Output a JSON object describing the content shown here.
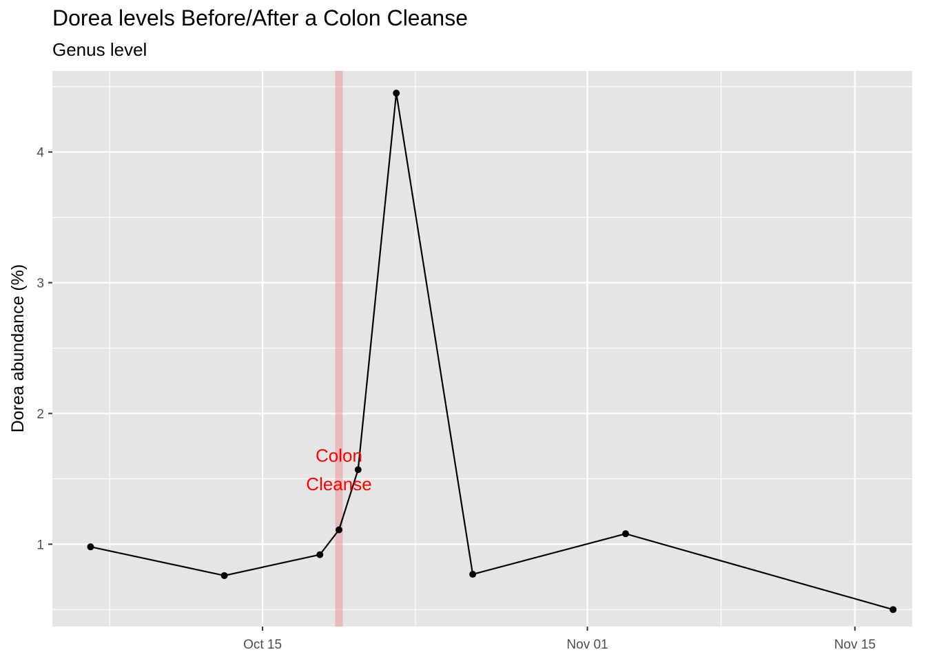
{
  "chart_data": {
    "type": "line",
    "title": "Dorea levels Before/After a Colon Cleanse",
    "subtitle": "Genus level",
    "xlabel": "",
    "ylabel": "Dorea abundance (%)",
    "x_type": "date",
    "xlim": [
      "2019-10-04",
      "2019-11-18"
    ],
    "ylim": [
      0.37,
      4.62
    ],
    "x_ticks": [
      {
        "date": "2019-10-15",
        "label": "Oct 15"
      },
      {
        "date": "2019-11-01",
        "label": "Nov 01"
      },
      {
        "date": "2019-11-15",
        "label": "Nov 15"
      }
    ],
    "x_minor_ticks": [
      "2019-10-07",
      "2019-10-23",
      "2019-11-08"
    ],
    "y_ticks": [
      1,
      2,
      3,
      4
    ],
    "y_minor_ticks": [
      0.5,
      1.5,
      2.5,
      3.5,
      4.5
    ],
    "grid": true,
    "series": [
      {
        "color": "#000000",
        "x": [
          "2019-10-06",
          "2019-10-13",
          "2019-10-18",
          "2019-10-19",
          "2019-10-20",
          "2019-10-22",
          "2019-10-26",
          "2019-11-03",
          "2019-11-17"
        ],
        "y": [
          0.98,
          0.76,
          0.92,
          1.11,
          1.57,
          4.45,
          0.77,
          1.08,
          0.5
        ]
      }
    ],
    "annotation": {
      "date": "2019-10-19",
      "color": "#ff0000",
      "band_color": "#f08080",
      "lines": [
        "Colon",
        "Cleanse"
      ],
      "y": [
        1.68,
        1.46
      ]
    },
    "colors": {
      "panel_background": "#e5e5e5",
      "grid": "#ffffff",
      "text": "#4d4d4d",
      "axis_title": "#000000"
    }
  }
}
